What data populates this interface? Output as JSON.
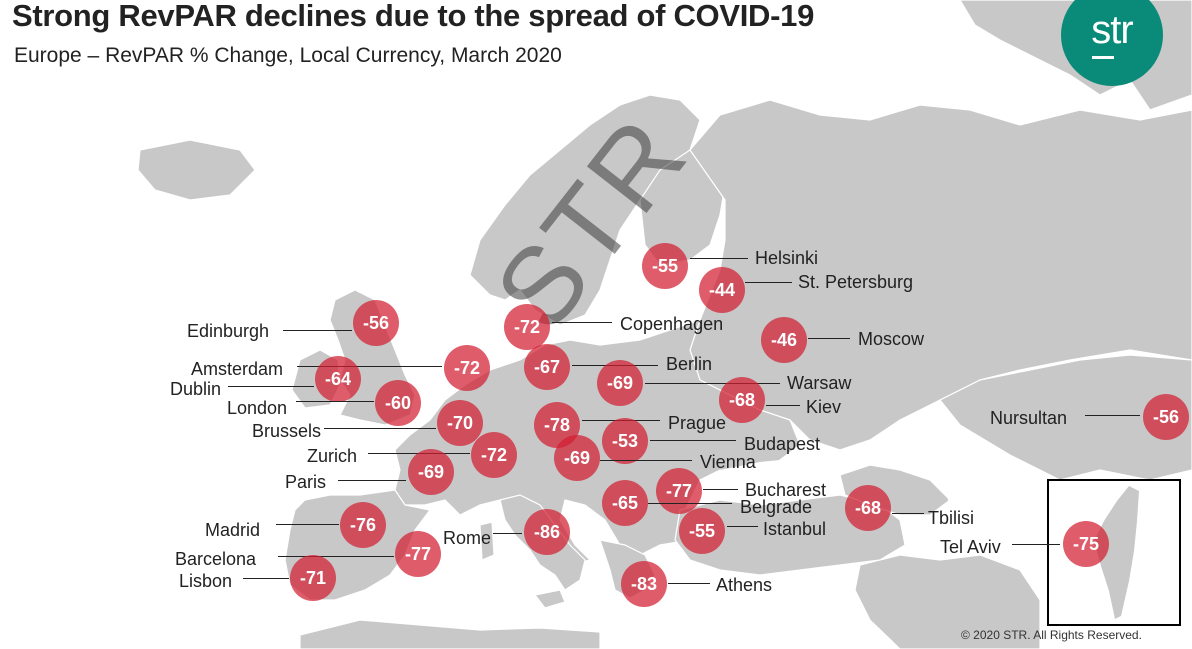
{
  "title": "Strong RevPAR declines due to the spread of COVID-19",
  "subtitle": "Europe – RevPAR % Change, Local Currency, March 2020",
  "logo": {
    "text": "str",
    "color": "#0a8a78"
  },
  "watermark": "STR",
  "copyright": "© 2020 STR. All Rights Reserved.",
  "colors": {
    "land": "#c8c8c8",
    "bubble": "#d21e32",
    "text": "#222222"
  },
  "cities": [
    {
      "name": "Helsinki",
      "value": "-55"
    },
    {
      "name": "St. Petersburg",
      "value": "-44"
    },
    {
      "name": "Copenhagen",
      "value": "-72"
    },
    {
      "name": "Moscow",
      "value": "-46"
    },
    {
      "name": "Edinburgh",
      "value": "-56"
    },
    {
      "name": "Amsterdam",
      "value": "-72"
    },
    {
      "name": "Berlin",
      "value": "-67"
    },
    {
      "name": "Dublin",
      "value": "-64"
    },
    {
      "name": "Warsaw",
      "value": "-69"
    },
    {
      "name": "London",
      "value": "-60"
    },
    {
      "name": "Kiev",
      "value": "-68"
    },
    {
      "name": "Brussels",
      "value": "-70"
    },
    {
      "name": "Prague",
      "value": "-78"
    },
    {
      "name": "Nursultan",
      "value": "-56"
    },
    {
      "name": "Budapest",
      "value": "-53"
    },
    {
      "name": "Zurich",
      "value": "-72"
    },
    {
      "name": "Vienna",
      "value": "-69"
    },
    {
      "name": "Paris",
      "value": "-69"
    },
    {
      "name": "Bucharest",
      "value": "-77"
    },
    {
      "name": "Belgrade",
      "value": "-65"
    },
    {
      "name": "Tbilisi",
      "value": "-68"
    },
    {
      "name": "Madrid",
      "value": "-76"
    },
    {
      "name": "Istanbul",
      "value": "-55"
    },
    {
      "name": "Rome",
      "value": "-86"
    },
    {
      "name": "Tel Aviv",
      "value": "-75"
    },
    {
      "name": "Barcelona",
      "value": "-77"
    },
    {
      "name": "Lisbon",
      "value": "-71"
    },
    {
      "name": "Athens",
      "value": "-83"
    }
  ]
}
